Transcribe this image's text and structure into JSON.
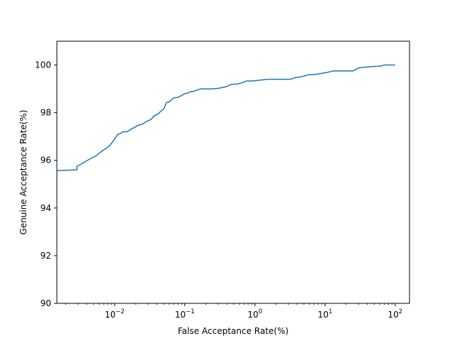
{
  "chart_data": {
    "type": "line",
    "title": "",
    "xlabel": "False Acceptance Rate(%)",
    "ylabel": "Genuine Acceptance Rate(%)",
    "x_scale": "log",
    "xlim": [
      0.0015,
      160
    ],
    "ylim": [
      90,
      101
    ],
    "grid": false,
    "legend": "none",
    "x_ticks": [
      {
        "value": 0.01,
        "base": "10",
        "exp": "−2"
      },
      {
        "value": 0.1,
        "base": "10",
        "exp": "−1"
      },
      {
        "value": 1,
        "base": "10",
        "exp": "0"
      },
      {
        "value": 10,
        "base": "10",
        "exp": "1"
      },
      {
        "value": 100,
        "base": "10",
        "exp": "2"
      }
    ],
    "y_ticks": [
      {
        "value": 90,
        "label": "90"
      },
      {
        "value": 92,
        "label": "92"
      },
      {
        "value": 94,
        "label": "94"
      },
      {
        "value": 96,
        "label": "96"
      },
      {
        "value": 98,
        "label": "98"
      },
      {
        "value": 100,
        "label": "100"
      }
    ],
    "series": [
      {
        "color": "#1f77b4",
        "x": [
          0.0015,
          0.0029,
          0.0029,
          0.0035,
          0.0045,
          0.0055,
          0.0065,
          0.0075,
          0.0085,
          0.0095,
          0.0105,
          0.011,
          0.012,
          0.013,
          0.014,
          0.015,
          0.0175,
          0.019,
          0.022,
          0.025,
          0.028,
          0.03,
          0.033,
          0.037,
          0.042,
          0.045,
          0.05,
          0.055,
          0.06,
          0.065,
          0.07,
          0.08,
          0.09,
          0.1,
          0.11,
          0.12,
          0.135,
          0.15,
          0.17,
          0.2,
          0.25,
          0.3,
          0.4,
          0.45,
          0.5,
          0.55,
          0.65,
          0.75,
          0.9,
          1.3,
          1.5,
          2.0,
          2.5,
          3.2,
          3.8,
          4.5,
          5.2,
          6.0,
          7.0,
          9.0,
          11,
          13,
          15,
          20,
          25,
          30,
          40,
          50,
          60,
          70,
          80,
          90,
          100
        ],
        "y": [
          95.57,
          95.6,
          95.75,
          95.88,
          96.07,
          96.2,
          96.38,
          96.5,
          96.62,
          96.8,
          97.0,
          97.08,
          97.12,
          97.2,
          97.2,
          97.2,
          97.32,
          97.38,
          97.48,
          97.52,
          97.62,
          97.66,
          97.72,
          97.88,
          97.95,
          98.05,
          98.15,
          98.43,
          98.45,
          98.55,
          98.62,
          98.65,
          98.72,
          98.8,
          98.82,
          98.88,
          98.9,
          98.95,
          99.0,
          99.0,
          99.0,
          99.02,
          99.1,
          99.18,
          99.2,
          99.2,
          99.25,
          99.33,
          99.33,
          99.38,
          99.4,
          99.4,
          99.4,
          99.4,
          99.48,
          99.5,
          99.55,
          99.6,
          99.6,
          99.65,
          99.7,
          99.75,
          99.75,
          99.75,
          99.75,
          99.88,
          99.92,
          99.94,
          99.95,
          100.0,
          100.0,
          100.0,
          100.0
        ]
      }
    ]
  }
}
